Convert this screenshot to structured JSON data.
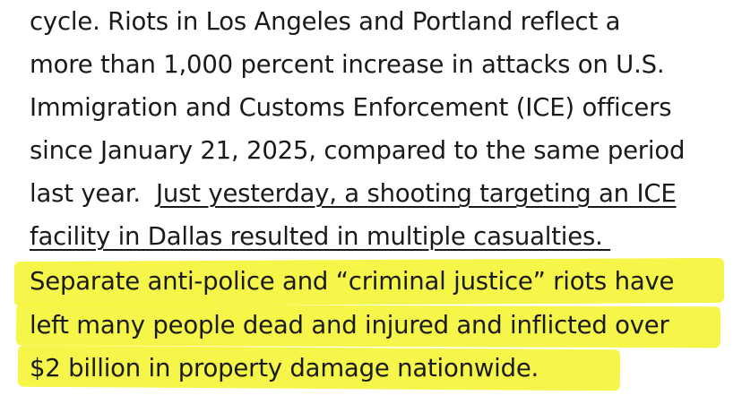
{
  "document": {
    "highlight_color": "#f4f53a",
    "lines": [
      {
        "pre": "cycle.  Riots in Los Angeles and Portland reflect a"
      },
      {
        "pre": "more than 1,000 percent increase in attacks on U.S."
      },
      {
        "pre": "Immigration and Customs Enforcement (ICE) officers"
      },
      {
        "pre": "since January 21, 2025, compared to the same period"
      },
      {
        "pre": "last year.  ",
        "underlined": "Just yesterday, a shooting targeting an ICE"
      },
      {
        "underlined": "facility in Dallas resulted in multiple casualties. "
      },
      {
        "pre": "Separate anti-police and “criminal justice” riots have"
      },
      {
        "pre": "left many people dead and injured and inflicted over"
      },
      {
        "pre": "$2 billion in property damage nationwide."
      }
    ]
  }
}
